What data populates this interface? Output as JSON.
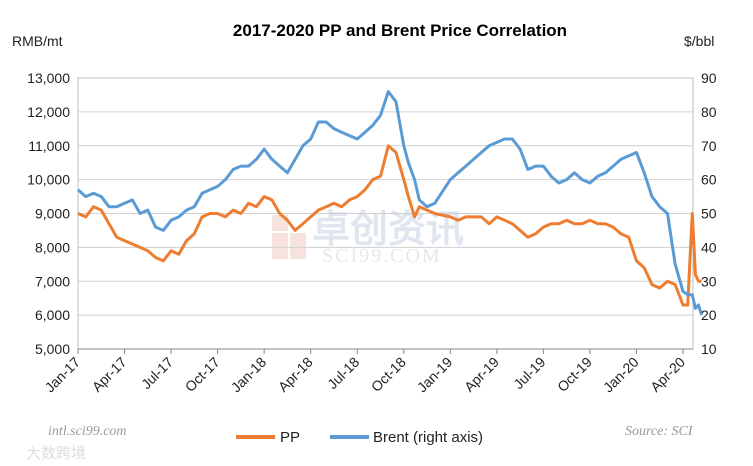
{
  "chart_data": {
    "type": "line",
    "title": "2017-2020 PP and Brent Price Correlation",
    "ylabel_left": "RMB/mt",
    "ylabel_right": "$/bbl",
    "ylim_left": [
      5000,
      13000
    ],
    "ylim_right": [
      10,
      90
    ],
    "yticks_left": [
      "5,000",
      "6,000",
      "7,000",
      "8,000",
      "9,000",
      "10,000",
      "11,000",
      "12,000",
      "13,000"
    ],
    "yticks_right": [
      "10",
      "20",
      "30",
      "40",
      "50",
      "60",
      "70",
      "80",
      "90"
    ],
    "xticks": [
      "Jan-17",
      "Apr-17",
      "Jul-17",
      "Oct-17",
      "Jan-18",
      "Apr-18",
      "Jul-18",
      "Oct-18",
      "Jan-19",
      "Apr-19",
      "Jul-19",
      "Oct-19",
      "Jan-20",
      "Apr-20"
    ],
    "x_unit": "months since Jan-2017",
    "grid": "horizontal",
    "legend_position": "bottom",
    "series": [
      {
        "name": "PP",
        "axis": "left",
        "color": "#ED7D31",
        "x": [
          0,
          0.5,
          1,
          1.5,
          2,
          2.5,
          3,
          3.5,
          4,
          4.5,
          5,
          5.5,
          6,
          6.5,
          7,
          7.5,
          8,
          8.5,
          9,
          9.5,
          10,
          10.5,
          11,
          11.5,
          12,
          12.5,
          13,
          13.5,
          14,
          14.5,
          15,
          15.5,
          16,
          16.5,
          17,
          17.5,
          18,
          18.5,
          19,
          19.5,
          20,
          20.5,
          21,
          21.3,
          21.7,
          22,
          22.5,
          23,
          24,
          24.5,
          25,
          25.5,
          26,
          26.5,
          27,
          27.5,
          28,
          28.5,
          29,
          29.5,
          30,
          30.5,
          31,
          31.5,
          32,
          32.5,
          33,
          33.5,
          34,
          34.5,
          35,
          35.5,
          36,
          36.5,
          37,
          37.5,
          38,
          38.5,
          39,
          39.3,
          39.6,
          39.8,
          40,
          40.2
        ],
        "values": [
          9000,
          8900,
          9200,
          9100,
          8700,
          8300,
          8200,
          8100,
          8000,
          7900,
          7700,
          7600,
          7900,
          7800,
          8200,
          8400,
          8900,
          9000,
          9000,
          8900,
          9100,
          9000,
          9300,
          9200,
          9500,
          9400,
          9000,
          8800,
          8500,
          8700,
          8900,
          9100,
          9200,
          9300,
          9200,
          9400,
          9500,
          9700,
          10000,
          10100,
          11000,
          10800,
          10000,
          9500,
          8900,
          9200,
          9100,
          9000,
          8900,
          8800,
          8900,
          8900,
          8900,
          8700,
          8900,
          8800,
          8700,
          8500,
          8300,
          8400,
          8600,
          8700,
          8700,
          8800,
          8700,
          8700,
          8800,
          8700,
          8700,
          8600,
          8400,
          8300,
          7600,
          7400,
          6900,
          6800,
          7000,
          6900,
          6300,
          6300,
          9000,
          7200,
          7000,
          7000
        ]
      },
      {
        "name": "Brent (right axis)",
        "axis": "right",
        "color": "#5B9BD5",
        "x": [
          0,
          0.5,
          1,
          1.5,
          2,
          2.5,
          3,
          3.5,
          4,
          4.5,
          5,
          5.5,
          6,
          6.5,
          7,
          7.5,
          8,
          8.5,
          9,
          9.5,
          10,
          10.5,
          11,
          11.5,
          12,
          12.5,
          13,
          13.5,
          14,
          14.5,
          15,
          15.5,
          16,
          16.5,
          17,
          17.5,
          18,
          18.5,
          19,
          19.5,
          20,
          20.5,
          21,
          21.3,
          21.7,
          22,
          22.5,
          23,
          24,
          24.5,
          25,
          25.5,
          26,
          26.5,
          27,
          27.5,
          28,
          28.5,
          29,
          29.5,
          30,
          30.5,
          31,
          31.5,
          32,
          32.5,
          33,
          33.5,
          34,
          34.5,
          35,
          35.5,
          36,
          36.5,
          37,
          37.5,
          38,
          38.5,
          39,
          39.3,
          39.6,
          39.8,
          40,
          40.2
        ],
        "values": [
          57,
          55,
          56,
          55,
          52,
          52,
          53,
          54,
          50,
          51,
          46,
          45,
          48,
          49,
          51,
          52,
          56,
          57,
          58,
          60,
          63,
          64,
          64,
          66,
          69,
          66,
          64,
          62,
          66,
          70,
          72,
          77,
          77,
          75,
          74,
          73,
          72,
          74,
          76,
          79,
          86,
          83,
          70,
          65,
          60,
          54,
          52,
          53,
          60,
          62,
          64,
          66,
          68,
          70,
          71,
          72,
          72,
          69,
          63,
          64,
          64,
          61,
          59,
          60,
          62,
          60,
          59,
          61,
          62,
          64,
          66,
          67,
          68,
          62,
          55,
          52,
          50,
          35,
          27,
          26,
          26,
          22,
          23,
          20
        ]
      }
    ]
  },
  "footer": {
    "site": "intl.sci99.com",
    "source": "Source: SCI"
  },
  "watermark": {
    "cn": "卓创资讯",
    "en": "SCI99.COM",
    "brand": "大数跨境"
  }
}
